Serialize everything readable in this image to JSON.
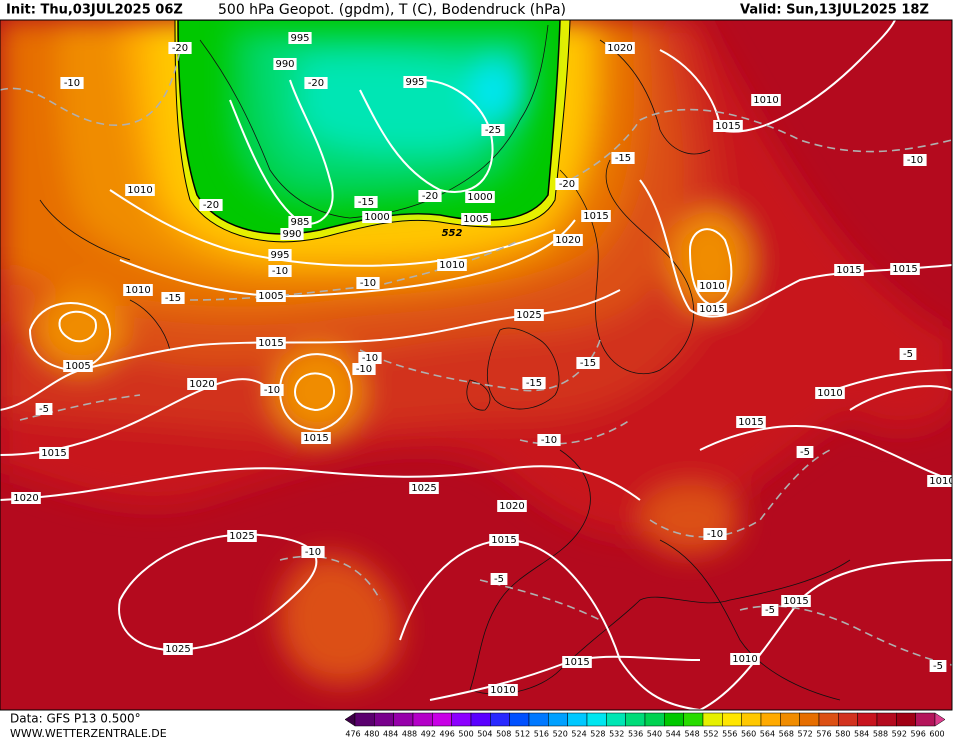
{
  "header": {
    "init": "Init: Thu,03JUL2025 06Z",
    "title": "500 hPa Geopot. (gpdm), T (C), Bodendruck (hPa)",
    "valid": "Valid: Sun,13JUL2025 18Z"
  },
  "footer": {
    "data": "Data: GFS P13 0.500°",
    "site": "WWW.WETTERZENTRALE.DE"
  },
  "legend": {
    "labels": [
      "476",
      "480",
      "484",
      "488",
      "492",
      "496",
      "500",
      "504",
      "508",
      "512",
      "516",
      "520",
      "524",
      "528",
      "532",
      "536",
      "540",
      "544",
      "548",
      "552",
      "556",
      "560",
      "564",
      "568",
      "572",
      "576",
      "580",
      "584",
      "588",
      "592",
      "596",
      "600"
    ],
    "colors": [
      "#3c0046",
      "#5a006e",
      "#78008c",
      "#9600aa",
      "#b400c8",
      "#c800e6",
      "#8c00ff",
      "#5a00ff",
      "#2828ff",
      "#0050ff",
      "#0078ff",
      "#00a0ff",
      "#00c8ff",
      "#00e6f0",
      "#00e6b4",
      "#00dc78",
      "#00d250",
      "#00c800",
      "#28dc00",
      "#e6f000",
      "#ffe600",
      "#ffc800",
      "#ffaa00",
      "#f08c00",
      "#e66e00",
      "#dc5014",
      "#d2321e",
      "#c8141e",
      "#b40a1e",
      "#a00014",
      "#b4145a",
      "#dc3c8c"
    ]
  },
  "map": {
    "isobar_labels": [
      "995",
      "990",
      "995",
      "1020",
      "1010",
      "1015",
      "1010",
      "1000",
      "985",
      "1000",
      "1005",
      "990",
      "995",
      "1010",
      "1015",
      "1020",
      "1010",
      "1015",
      "1015",
      "1015",
      "1010",
      "1005",
      "1025",
      "1015",
      "1005",
      "1020",
      "1015",
      "1010",
      "1015",
      "1015",
      "1025",
      "1020",
      "1020",
      "1010",
      "1025",
      "1015",
      "1015",
      "1025",
      "1015",
      "1010",
      "1010"
    ],
    "temperature_labels": [
      "-20",
      "-10",
      "-20",
      "-25",
      "-15",
      "-10",
      "-20",
      "-15",
      "-20",
      "-20",
      "-10",
      "-10",
      "-15",
      "-10",
      "-10",
      "-15",
      "-15",
      "-10",
      "-5",
      "-5",
      "-10",
      "-5",
      "-10",
      "-10",
      "-5",
      "-5",
      "-5"
    ],
    "geopotential_labels": [
      "552"
    ]
  }
}
